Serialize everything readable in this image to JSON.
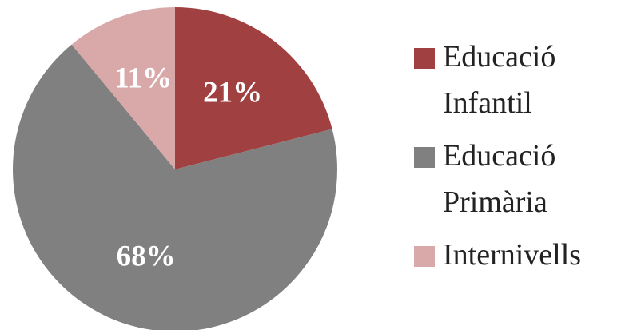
{
  "chart_data": {
    "type": "pie",
    "categories": [
      "Educació Infantil",
      "Educació Primària",
      "Internivells"
    ],
    "values": [
      21,
      68,
      11
    ],
    "value_labels": [
      "21%",
      "68%",
      "11%"
    ],
    "colors": [
      "#a04040",
      "#808080",
      "#d9a9a9"
    ],
    "legend": "right"
  }
}
